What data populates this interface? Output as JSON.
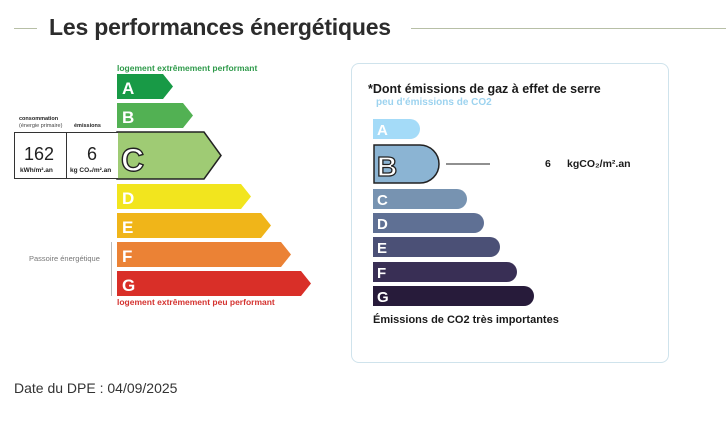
{
  "header": {
    "title": "Les performances énergétiques"
  },
  "dpe": {
    "top_note": "logement extrêmement performant",
    "bottom_note": "logement extrêmement peu performant",
    "classes": [
      "A",
      "B",
      "C",
      "D",
      "E",
      "F",
      "G"
    ],
    "current_class": "C",
    "consumption": {
      "label": "consommation",
      "sublabel": "(énergie primaire)",
      "value": "162",
      "unit": "kWh/m².an"
    },
    "emissions": {
      "label": "émissions",
      "value": "6",
      "unit": "kg CO₂/m².an"
    },
    "passoire_label": "Passoire énergétique",
    "colors": {
      "A": "#189a46",
      "B": "#52b153",
      "C": "#9fcb74",
      "D": "#f2e51e",
      "E": "#f0b519",
      "F": "#eb8235",
      "G": "#d92f28"
    }
  },
  "ges": {
    "title": "*Dont émissions de gaz à effet de serre",
    "subtitle": "peu d'émissions de CO2",
    "classes": [
      "A",
      "B",
      "C",
      "D",
      "E",
      "F",
      "G"
    ],
    "current_class": "B",
    "value": "6",
    "unit": "kgCO₂/m².an",
    "footer": "Émissions de CO2 très importantes",
    "colors": {
      "A": "#a4dbf8",
      "B": "#8bb4d3",
      "C": "#7793b1",
      "D": "#5f7094",
      "E": "#4b5076",
      "F": "#392f55",
      "G": "#271b3a"
    }
  },
  "footer": {
    "date_text": "Date du DPE : 04/09/2025"
  }
}
